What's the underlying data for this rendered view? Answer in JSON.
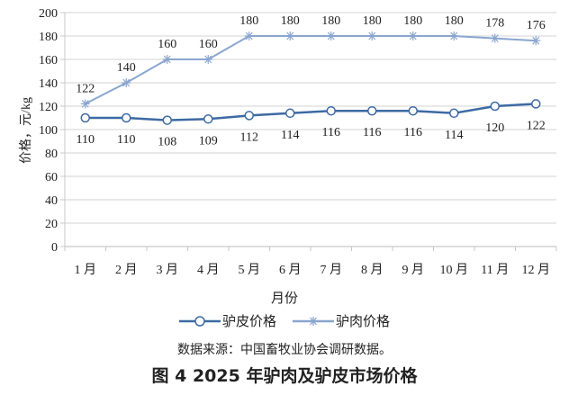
{
  "chart_data": {
    "type": "line",
    "title": "图 4 2025 年驴肉及驴皮市场价格",
    "xlabel": "月份",
    "ylabel": "价格，元/kg",
    "categories": [
      "1 月",
      "2 月",
      "3 月",
      "4 月",
      "5 月",
      "6 月",
      "7 月",
      "8 月",
      "9 月",
      "10 月",
      "11 月",
      "12 月"
    ],
    "ylim": [
      0,
      200
    ],
    "yticks": [
      0,
      20,
      40,
      60,
      80,
      100,
      120,
      140,
      160,
      180,
      200
    ],
    "grid": true,
    "legend_position": "bottom",
    "series": [
      {
        "name": "驴皮价格",
        "marker": "circle",
        "color": "#3d6aa3",
        "values": [
          110,
          110,
          108,
          109,
          112,
          114,
          116,
          116,
          116,
          114,
          120,
          122
        ]
      },
      {
        "name": "驴肉价格",
        "marker": "asterisk",
        "color": "#8aa6cf",
        "values": [
          122,
          140,
          160,
          160,
          180,
          180,
          180,
          180,
          180,
          180,
          178,
          176
        ]
      }
    ]
  },
  "axis": {
    "x_title": "月份",
    "y_title": "价格，元/kg"
  },
  "legend": {
    "items": [
      {
        "label": "驴皮价格"
      },
      {
        "label": "驴肉价格"
      }
    ]
  },
  "source_note": "数据来源：中国畜牧业协会调研数据。",
  "caption": "图 4 2025 年驴肉及驴皮市场价格"
}
